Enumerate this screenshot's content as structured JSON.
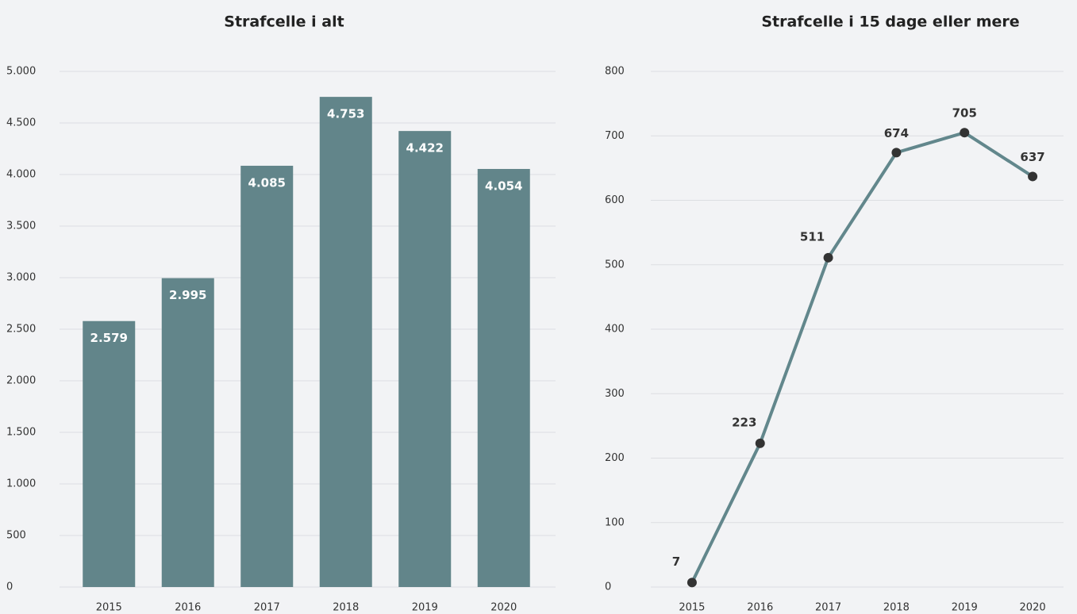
{
  "chart_data": [
    {
      "type": "bar",
      "title": "Strafcelle i alt",
      "categories": [
        "2015",
        "2016",
        "2017",
        "2018",
        "2019",
        "2020"
      ],
      "values": [
        2579,
        2995,
        4085,
        4753,
        4422,
        4054
      ],
      "value_labels": [
        "2.579",
        "2.995",
        "4.085",
        "4.753",
        "4.422",
        "4.054"
      ],
      "color": "#62858a",
      "ylim": [
        0,
        5000
      ],
      "yticks": [
        0,
        500,
        {
          "value": 1000,
          "label": "1.000"
        },
        {
          "value": 1500,
          "label": "1.500"
        },
        {
          "value": 2000,
          "label": "2.000"
        },
        {
          "value": 2500,
          "label": "2.500"
        },
        {
          "value": 3000,
          "label": "3.000"
        },
        {
          "value": 3500,
          "label": "3.500"
        },
        {
          "value": 4000,
          "label": "4.000"
        },
        {
          "value": 4500,
          "label": "4.500"
        },
        {
          "value": 5000,
          "label": "5.000"
        }
      ],
      "grid": true
    },
    {
      "type": "line",
      "title": "Strafcelle i 15 dage eller mere",
      "categories": [
        "2015",
        "2016",
        "2017",
        "2018",
        "2019",
        "2020"
      ],
      "values": [
        7,
        223,
        511,
        674,
        705,
        637
      ],
      "color": "#62878c",
      "marker_color": "#333333",
      "ylim": [
        0,
        800
      ],
      "yticks": [
        0,
        100,
        200,
        300,
        400,
        500,
        600,
        700,
        800
      ],
      "grid": true
    }
  ]
}
